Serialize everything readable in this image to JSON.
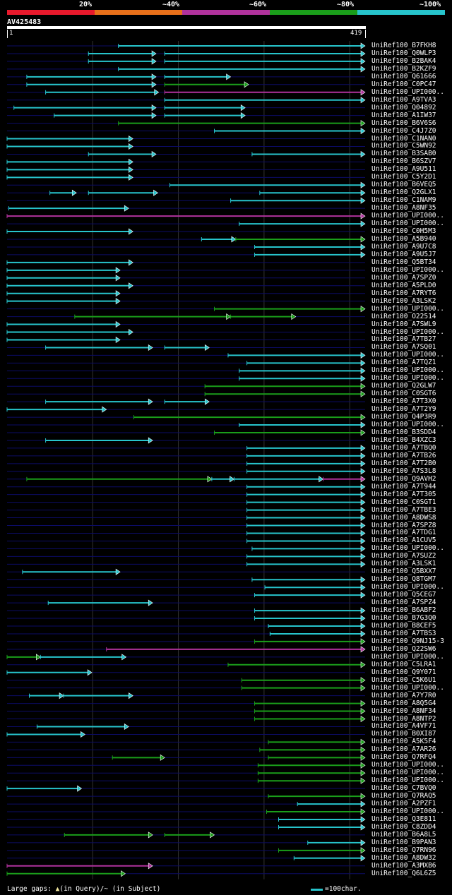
{
  "query": {
    "id": "AV425483",
    "start": "1",
    "end": "419",
    "length": 419
  },
  "colors": {
    "bg": "#000000",
    "red": "#e8192c",
    "orange": "#e8701a",
    "purple": "#b0329c",
    "green": "#1a9e1a",
    "cyan": "#27c4cc",
    "rail": "#0c0c66",
    "grid": "#333333"
  },
  "legend": {
    "identity_bands": [
      {
        "label": "20%",
        "color": "#e8192c"
      },
      {
        "label": "~40%",
        "color": "#e8701a"
      },
      {
        "label": "~60%",
        "color": "#b0329c"
      },
      {
        "label": "~80%",
        "color": "#1a9e1a"
      },
      {
        "label": "~100%",
        "color": "#27c4cc"
      }
    ]
  },
  "footer": {
    "gaps_label": "Large gaps: ",
    "gaps_query": "(in Query)",
    "gaps_subject": "/~ (in Subject)",
    "scale_label": "=100char."
  },
  "hits": [
    {
      "id": "UniRef100_B7FKH8",
      "segs": [
        {
          "s": 131,
          "e": 419,
          "c": "cyan"
        }
      ]
    },
    {
      "id": "UniRef100_Q0WLP3",
      "segs": [
        {
          "s": 96,
          "e": 175,
          "c": "cyan"
        },
        {
          "s": 185,
          "e": 419,
          "c": "cyan"
        }
      ]
    },
    {
      "id": "UniRef100_B2BAK4",
      "segs": [
        {
          "s": 96,
          "e": 175,
          "c": "cyan"
        },
        {
          "s": 185,
          "e": 419,
          "c": "cyan"
        }
      ]
    },
    {
      "id": "UniRef100_B2KZF9",
      "segs": [
        {
          "s": 131,
          "e": 419,
          "c": "cyan"
        }
      ]
    },
    {
      "id": "UniRef100_Q61666",
      "segs": [
        {
          "s": 24,
          "e": 175,
          "c": "cyan"
        },
        {
          "s": 185,
          "e": 262,
          "c": "cyan"
        }
      ]
    },
    {
      "id": "UniRef100_C0PC47",
      "segs": [
        {
          "s": 24,
          "e": 175,
          "c": "cyan"
        },
        {
          "s": 185,
          "e": 283,
          "c": "green"
        }
      ]
    },
    {
      "id": "UniRef100_UPI000..",
      "segs": [
        {
          "s": 46,
          "e": 178,
          "c": "cyan"
        },
        {
          "s": 185,
          "e": 419,
          "c": "purple"
        }
      ]
    },
    {
      "id": "UniRef100_A9TVA3",
      "segs": [
        {
          "s": 185,
          "e": 419,
          "c": "cyan"
        }
      ]
    },
    {
      "id": "UniRef100_Q04892",
      "segs": [
        {
          "s": 9,
          "e": 175,
          "c": "cyan"
        },
        {
          "s": 185,
          "e": 279,
          "c": "cyan"
        }
      ]
    },
    {
      "id": "UniRef100_A1IW37",
      "segs": [
        {
          "s": 56,
          "e": 175,
          "c": "cyan"
        },
        {
          "s": 185,
          "e": 279,
          "c": "cyan"
        }
      ]
    },
    {
      "id": "UniRef100_B6V6S6",
      "segs": [
        {
          "s": 131,
          "e": 419,
          "c": "green"
        }
      ]
    },
    {
      "id": "UniRef100_C4J7Z0",
      "segs": [
        {
          "s": 243,
          "e": 419,
          "c": "cyan"
        }
      ]
    },
    {
      "id": "UniRef100_C1NAN0",
      "segs": [
        {
          "s": 1,
          "e": 148,
          "c": "cyan"
        }
      ]
    },
    {
      "id": "UniRef100_C5WN92",
      "segs": [
        {
          "s": 1,
          "e": 148,
          "c": "cyan"
        }
      ]
    },
    {
      "id": "UniRef100_B3SAB0",
      "segs": [
        {
          "s": 96,
          "e": 175,
          "c": "cyan"
        },
        {
          "s": 287,
          "e": 419,
          "c": "cyan"
        }
      ]
    },
    {
      "id": "UniRef100_B6SZV7",
      "segs": [
        {
          "s": 1,
          "e": 148,
          "c": "cyan"
        }
      ]
    },
    {
      "id": "UniRef100_A9U511",
      "segs": [
        {
          "s": 1,
          "e": 148,
          "c": "cyan"
        }
      ]
    },
    {
      "id": "UniRef100_C5Y2D1",
      "segs": [
        {
          "s": 1,
          "e": 148,
          "c": "cyan"
        }
      ]
    },
    {
      "id": "UniRef100_B6VEQ5",
      "segs": [
        {
          "s": 191,
          "e": 419,
          "c": "cyan"
        }
      ]
    },
    {
      "id": "UniRef100_Q2GLX1",
      "segs": [
        {
          "s": 51,
          "e": 82,
          "c": "cyan"
        },
        {
          "s": 96,
          "e": 177,
          "c": "cyan"
        },
        {
          "s": 296,
          "e": 419,
          "c": "cyan"
        }
      ]
    },
    {
      "id": "UniRef100_C1NAM9",
      "segs": [
        {
          "s": 262,
          "e": 419,
          "c": "cyan"
        }
      ]
    },
    {
      "id": "UniRef100_A8NF35",
      "segs": [
        {
          "s": 3,
          "e": 143,
          "c": "cyan"
        }
      ]
    },
    {
      "id": "UniRef100_UPI000..",
      "segs": [
        {
          "s": 1,
          "e": 419,
          "c": "purple"
        }
      ]
    },
    {
      "id": "UniRef100_UPI000..",
      "segs": [
        {
          "s": 272,
          "e": 419,
          "c": "cyan"
        }
      ]
    },
    {
      "id": "UniRef100_C0H5M3",
      "segs": [
        {
          "s": 1,
          "e": 148,
          "c": "cyan"
        }
      ]
    },
    {
      "id": "UniRef100_A5B940",
      "segs": [
        {
          "s": 228,
          "e": 268,
          "c": "cyan"
        },
        {
          "s": 268,
          "e": 419,
          "c": "green"
        }
      ]
    },
    {
      "id": "UniRef100_A9U7C8",
      "segs": [
        {
          "s": 290,
          "e": 419,
          "c": "cyan"
        }
      ]
    },
    {
      "id": "UniRef100_A9U5J7",
      "segs": [
        {
          "s": 290,
          "e": 419,
          "c": "cyan"
        }
      ]
    },
    {
      "id": "UniRef100_Q5BT34",
      "segs": [
        {
          "s": 1,
          "e": 148,
          "c": "cyan"
        }
      ]
    },
    {
      "id": "UniRef100_UPI000..",
      "segs": [
        {
          "s": 1,
          "e": 133,
          "c": "cyan"
        }
      ]
    },
    {
      "id": "UniRef100_A7SPZ0",
      "segs": [
        {
          "s": 1,
          "e": 133,
          "c": "cyan"
        }
      ]
    },
    {
      "id": "UniRef100_A5PLD0",
      "segs": [
        {
          "s": 1,
          "e": 148,
          "c": "cyan"
        }
      ]
    },
    {
      "id": "UniRef100_A7RYT6",
      "segs": [
        {
          "s": 1,
          "e": 133,
          "c": "cyan"
        }
      ]
    },
    {
      "id": "UniRef100_A3LSK2",
      "segs": [
        {
          "s": 1,
          "e": 133,
          "c": "cyan"
        }
      ]
    },
    {
      "id": "UniRef100_UPI000..",
      "segs": [
        {
          "s": 243,
          "e": 419,
          "c": "green"
        }
      ]
    },
    {
      "id": "UniRef100_O22514",
      "segs": [
        {
          "s": 80,
          "e": 262,
          "c": "green"
        },
        {
          "s": 262,
          "e": 338,
          "c": "green"
        }
      ]
    },
    {
      "id": "UniRef100_A7SWL9",
      "segs": [
        {
          "s": 1,
          "e": 133,
          "c": "cyan"
        }
      ]
    },
    {
      "id": "UniRef100_UPI000..",
      "segs": [
        {
          "s": 1,
          "e": 148,
          "c": "cyan"
        }
      ]
    },
    {
      "id": "UniRef100_A7TB27",
      "segs": [
        {
          "s": 1,
          "e": 133,
          "c": "cyan"
        }
      ]
    },
    {
      "id": "UniRef100_A7SQ01",
      "segs": [
        {
          "s": 46,
          "e": 171,
          "c": "cyan"
        },
        {
          "s": 185,
          "e": 237,
          "c": "cyan"
        }
      ]
    },
    {
      "id": "UniRef100_UPI000..",
      "segs": [
        {
          "s": 259,
          "e": 419,
          "c": "cyan"
        }
      ]
    },
    {
      "id": "UniRef100_A7TQZ1",
      "segs": [
        {
          "s": 281,
          "e": 419,
          "c": "cyan"
        }
      ]
    },
    {
      "id": "UniRef100_UPI000..",
      "segs": [
        {
          "s": 272,
          "e": 419,
          "c": "cyan"
        }
      ]
    },
    {
      "id": "UniRef100_UPI000..",
      "segs": [
        {
          "s": 272,
          "e": 419,
          "c": "cyan"
        }
      ]
    },
    {
      "id": "UniRef100_Q2GLW7",
      "segs": [
        {
          "s": 232,
          "e": 419,
          "c": "green"
        }
      ]
    },
    {
      "id": "UniRef100_C0SGT6",
      "segs": [
        {
          "s": 232,
          "e": 419,
          "c": "green"
        }
      ]
    },
    {
      "id": "UniRef100_A7T3X0",
      "segs": [
        {
          "s": 46,
          "e": 171,
          "c": "cyan"
        },
        {
          "s": 185,
          "e": 237,
          "c": "cyan"
        }
      ]
    },
    {
      "id": "UniRef100_A7T2Y9",
      "segs": [
        {
          "s": 1,
          "e": 117,
          "c": "cyan"
        }
      ]
    },
    {
      "id": "UniRef100_Q4P3R9",
      "segs": [
        {
          "s": 149,
          "e": 419,
          "c": "green"
        }
      ]
    },
    {
      "id": "UniRef100_UPI000..",
      "segs": [
        {
          "s": 272,
          "e": 419,
          "c": "cyan"
        }
      ]
    },
    {
      "id": "UniRef100_B3SDD4",
      "segs": [
        {
          "s": 243,
          "e": 419,
          "c": "green"
        }
      ]
    },
    {
      "id": "UniRef100_B4XZC3",
      "segs": [
        {
          "s": 46,
          "e": 171,
          "c": "cyan"
        }
      ]
    },
    {
      "id": "UniRef100_A7TBQ0",
      "segs": [
        {
          "s": 281,
          "e": 419,
          "c": "cyan"
        }
      ]
    },
    {
      "id": "UniRef100_A7TB26",
      "segs": [
        {
          "s": 281,
          "e": 419,
          "c": "cyan"
        }
      ]
    },
    {
      "id": "UniRef100_A7T2B0",
      "segs": [
        {
          "s": 281,
          "e": 419,
          "c": "cyan"
        }
      ]
    },
    {
      "id": "UniRef100_A7S3L8",
      "segs": [
        {
          "s": 281,
          "e": 419,
          "c": "cyan"
        }
      ]
    },
    {
      "id": "UniRef100_Q9AVH2",
      "segs": [
        {
          "s": 24,
          "e": 240,
          "c": "green"
        },
        {
          "s": 240,
          "e": 266,
          "c": "cyan"
        },
        {
          "s": 266,
          "e": 370,
          "c": "cyan"
        },
        {
          "s": 370,
          "e": 419,
          "c": "purple"
        }
      ]
    },
    {
      "id": "UniRef100_A7T944",
      "segs": [
        {
          "s": 281,
          "e": 419,
          "c": "cyan"
        }
      ]
    },
    {
      "id": "UniRef100_A7T305",
      "segs": [
        {
          "s": 281,
          "e": 419,
          "c": "cyan"
        }
      ]
    },
    {
      "id": "UniRef100_C0SGT1",
      "segs": [
        {
          "s": 281,
          "e": 419,
          "c": "cyan"
        }
      ]
    },
    {
      "id": "UniRef100_A7TBE3",
      "segs": [
        {
          "s": 281,
          "e": 419,
          "c": "cyan"
        }
      ]
    },
    {
      "id": "UniRef100_A8DWS8",
      "segs": [
        {
          "s": 281,
          "e": 419,
          "c": "cyan"
        }
      ]
    },
    {
      "id": "UniRef100_A7SPZ8",
      "segs": [
        {
          "s": 281,
          "e": 419,
          "c": "cyan"
        }
      ]
    },
    {
      "id": "UniRef100_A7TDG1",
      "segs": [
        {
          "s": 281,
          "e": 419,
          "c": "cyan"
        }
      ]
    },
    {
      "id": "UniRef100_A1CUV5",
      "segs": [
        {
          "s": 281,
          "e": 419,
          "c": "cyan"
        }
      ]
    },
    {
      "id": "UniRef100_UPI000..",
      "segs": [
        {
          "s": 287,
          "e": 419,
          "c": "cyan"
        }
      ]
    },
    {
      "id": "UniRef100_A7SUZ2",
      "segs": [
        {
          "s": 281,
          "e": 419,
          "c": "cyan"
        }
      ]
    },
    {
      "id": "UniRef100_A3LSK1",
      "segs": [
        {
          "s": 281,
          "e": 419,
          "c": "cyan"
        }
      ]
    },
    {
      "id": "UniRef100_Q5BXX7",
      "segs": [
        {
          "s": 19,
          "e": 133,
          "c": "cyan"
        }
      ]
    },
    {
      "id": "UniRef100_Q8TGM7",
      "segs": [
        {
          "s": 287,
          "e": 419,
          "c": "cyan"
        }
      ]
    },
    {
      "id": "UniRef100_UPI000..",
      "segs": [
        {
          "s": 302,
          "e": 419,
          "c": "cyan"
        }
      ]
    },
    {
      "id": "UniRef100_Q5CEG7",
      "segs": [
        {
          "s": 290,
          "e": 419,
          "c": "cyan"
        }
      ]
    },
    {
      "id": "UniRef100_A7SPZ4",
      "segs": [
        {
          "s": 49,
          "e": 171,
          "c": "cyan"
        }
      ]
    },
    {
      "id": "UniRef100_B6ABF2",
      "segs": [
        {
          "s": 290,
          "e": 419,
          "c": "cyan"
        }
      ]
    },
    {
      "id": "UniRef100_B7G3Q0",
      "segs": [
        {
          "s": 290,
          "e": 419,
          "c": "cyan"
        }
      ]
    },
    {
      "id": "UniRef100_B8CEF5",
      "segs": [
        {
          "s": 306,
          "e": 419,
          "c": "cyan"
        }
      ]
    },
    {
      "id": "UniRef100_A7TBS3",
      "segs": [
        {
          "s": 308,
          "e": 419,
          "c": "cyan"
        }
      ]
    },
    {
      "id": "UniRef100_Q9NJ15-3",
      "segs": [
        {
          "s": 290,
          "e": 419,
          "c": "green"
        }
      ]
    },
    {
      "id": "UniRef100_Q22SW6",
      "segs": [
        {
          "s": 117,
          "e": 419,
          "c": "purple"
        }
      ]
    },
    {
      "id": "UniRef100_UPI000..",
      "segs": [
        {
          "s": 1,
          "e": 40,
          "c": "green"
        },
        {
          "s": 40,
          "e": 140,
          "c": "cyan"
        }
      ]
    },
    {
      "id": "UniRef100_C5LRA1",
      "segs": [
        {
          "s": 259,
          "e": 419,
          "c": "green"
        }
      ]
    },
    {
      "id": "UniRef100_Q9Y071",
      "segs": [
        {
          "s": 1,
          "e": 100,
          "c": "cyan"
        }
      ]
    },
    {
      "id": "UniRef100_C5K6U1",
      "segs": [
        {
          "s": 275,
          "e": 419,
          "c": "green"
        }
      ]
    },
    {
      "id": "UniRef100_UPI000..",
      "segs": [
        {
          "s": 275,
          "e": 419,
          "c": "green"
        }
      ]
    },
    {
      "id": "UniRef100_A7Y7R0",
      "segs": [
        {
          "s": 27,
          "e": 67,
          "c": "cyan"
        },
        {
          "s": 67,
          "e": 148,
          "c": "cyan"
        }
      ]
    },
    {
      "id": "UniRef100_A8Q5G4",
      "segs": [
        {
          "s": 290,
          "e": 419,
          "c": "green"
        }
      ]
    },
    {
      "id": "UniRef100_A8NF34",
      "segs": [
        {
          "s": 290,
          "e": 419,
          "c": "green"
        }
      ]
    },
    {
      "id": "UniRef100_A8NTP2",
      "segs": [
        {
          "s": 290,
          "e": 419,
          "c": "green"
        }
      ]
    },
    {
      "id": "UniRef100_A4VF71",
      "segs": [
        {
          "s": 36,
          "e": 143,
          "c": "cyan"
        }
      ]
    },
    {
      "id": "UniRef100_B0XI87",
      "segs": [
        {
          "s": 1,
          "e": 92,
          "c": "cyan"
        }
      ]
    },
    {
      "id": "UniRef100_A5K5F4",
      "segs": [
        {
          "s": 306,
          "e": 419,
          "c": "green"
        }
      ]
    },
    {
      "id": "UniRef100_A7AR26",
      "segs": [
        {
          "s": 296,
          "e": 419,
          "c": "green"
        }
      ]
    },
    {
      "id": "UniRef100_Q7RFQ4",
      "segs": [
        {
          "s": 124,
          "e": 185,
          "c": "green"
        },
        {
          "s": 306,
          "e": 419,
          "c": "green"
        }
      ]
    },
    {
      "id": "UniRef100_UPI000..",
      "segs": [
        {
          "s": 294,
          "e": 419,
          "c": "green"
        }
      ]
    },
    {
      "id": "UniRef100_UPI000..",
      "segs": [
        {
          "s": 294,
          "e": 419,
          "c": "green"
        }
      ]
    },
    {
      "id": "UniRef100_UPI000..",
      "segs": [
        {
          "s": 294,
          "e": 419,
          "c": "green"
        }
      ]
    },
    {
      "id": "UniRef100_C7BVQ0",
      "segs": [
        {
          "s": 1,
          "e": 88,
          "c": "cyan"
        }
      ]
    },
    {
      "id": "UniRef100_Q7RAQ5",
      "segs": [
        {
          "s": 306,
          "e": 419,
          "c": "green"
        }
      ]
    },
    {
      "id": "UniRef100_A2PZF1",
      "segs": [
        {
          "s": 340,
          "e": 419,
          "c": "cyan"
        }
      ]
    },
    {
      "id": "UniRef100_UPI000..",
      "segs": [
        {
          "s": 304,
          "e": 419,
          "c": "green"
        }
      ]
    },
    {
      "id": "UniRef100_Q3E811",
      "segs": [
        {
          "s": 318,
          "e": 419,
          "c": "cyan"
        }
      ]
    },
    {
      "id": "UniRef100_C8ZDD4",
      "segs": [
        {
          "s": 318,
          "e": 419,
          "c": "cyan"
        }
      ]
    },
    {
      "id": "UniRef100_B6A8L5",
      "segs": [
        {
          "s": 68,
          "e": 171,
          "c": "green"
        },
        {
          "s": 185,
          "e": 243,
          "c": "green"
        }
      ]
    },
    {
      "id": "UniRef100_B9PAN3",
      "segs": [
        {
          "s": 352,
          "e": 419,
          "c": "cyan"
        }
      ]
    },
    {
      "id": "UniRef100_Q7RN96",
      "segs": [
        {
          "s": 318,
          "e": 419,
          "c": "green"
        }
      ]
    },
    {
      "id": "UniRef100_A8DW32",
      "segs": [
        {
          "s": 336,
          "e": 419,
          "c": "cyan"
        }
      ]
    },
    {
      "id": "UniRef100_A3MXB6",
      "segs": [
        {
          "s": 1,
          "e": 171,
          "c": "purple"
        }
      ]
    },
    {
      "id": "UniRef100_Q6L6Z5",
      "segs": [
        {
          "s": 1,
          "e": 139,
          "c": "green"
        }
      ]
    }
  ]
}
